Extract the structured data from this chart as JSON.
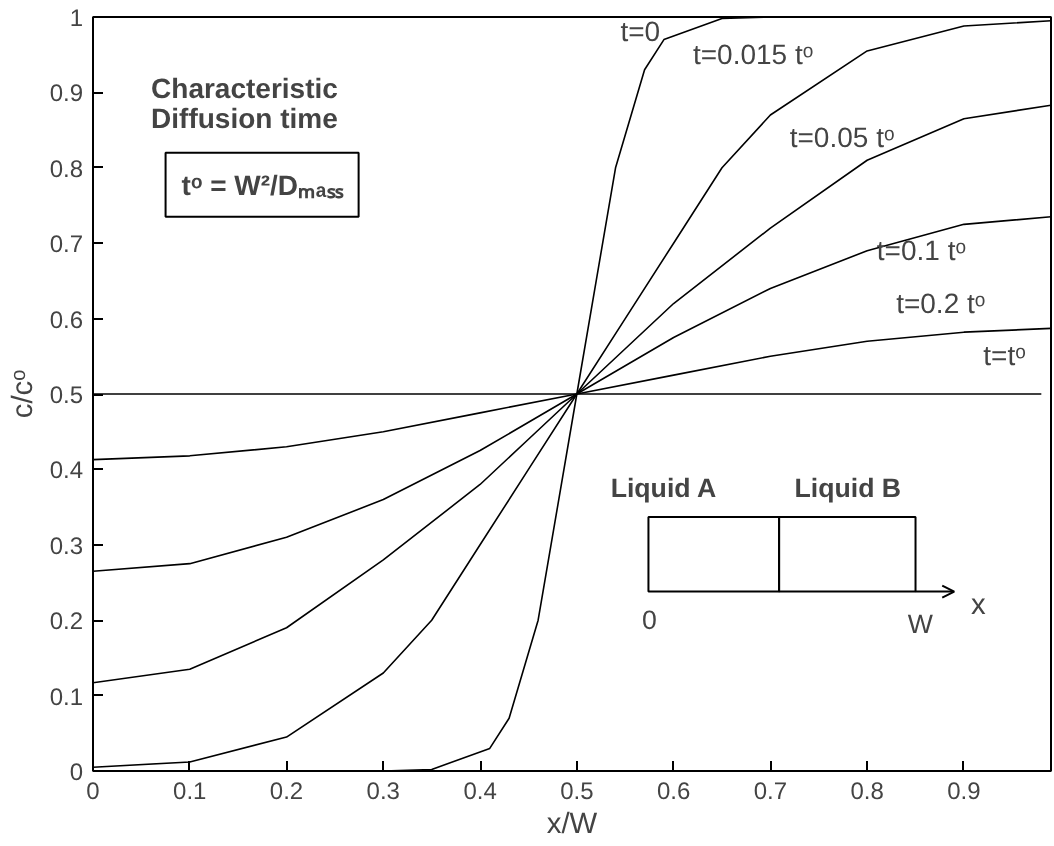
{
  "chart_data": {
    "type": "line",
    "xlabel": "x/W",
    "ylabel": "c/cᵒ",
    "xlim": [
      0,
      0.99
    ],
    "ylim": [
      0,
      1
    ],
    "xticks": [
      0,
      0.1,
      0.2,
      0.3,
      0.4,
      0.5,
      0.6,
      0.7,
      0.8,
      0.9
    ],
    "yticks": [
      0,
      0.1,
      0.2,
      0.3,
      0.4,
      0.5,
      0.6,
      0.7,
      0.8,
      0.9,
      1
    ],
    "grid": false,
    "marker": "none",
    "line_style": "solid",
    "series": [
      {
        "name": "t=0",
        "color": "#000000",
        "x": [
          0.3,
          0.35,
          0.41,
          0.43,
          0.46,
          0.48,
          0.5,
          0.52,
          0.54,
          0.57,
          0.59,
          0.65,
          0.7
        ],
        "values": [
          0,
          0.002,
          0.03,
          0.07,
          0.2,
          0.35,
          0.5,
          0.65,
          0.8,
          0.93,
          0.97,
          0.998,
          1
        ]
      },
      {
        "name": "t=0.015 tᵒ",
        "color": "#000000",
        "x": [
          0,
          0.1,
          0.2,
          0.3,
          0.35,
          0.4,
          0.45,
          0.5,
          0.55,
          0.6,
          0.65,
          0.7,
          0.8,
          0.9,
          0.99
        ],
        "values": [
          0.005,
          0.012,
          0.045,
          0.13,
          0.2,
          0.3,
          0.4,
          0.5,
          0.6,
          0.7,
          0.8,
          0.87,
          0.955,
          0.988,
          0.995
        ]
      },
      {
        "name": "t=0.05 tᵒ",
        "color": "#000000",
        "x": [
          0,
          0.1,
          0.2,
          0.3,
          0.4,
          0.45,
          0.5,
          0.55,
          0.6,
          0.7,
          0.8,
          0.9,
          0.99
        ],
        "values": [
          0.117,
          0.135,
          0.19,
          0.28,
          0.38,
          0.44,
          0.5,
          0.56,
          0.62,
          0.72,
          0.81,
          0.865,
          0.883
        ]
      },
      {
        "name": "t=0.1 tᵒ",
        "color": "#000000",
        "x": [
          0,
          0.1,
          0.2,
          0.3,
          0.4,
          0.5,
          0.6,
          0.7,
          0.8,
          0.9,
          0.99
        ],
        "values": [
          0.265,
          0.275,
          0.31,
          0.36,
          0.425,
          0.5,
          0.575,
          0.64,
          0.69,
          0.725,
          0.735
        ]
      },
      {
        "name": "t=0.2 tᵒ",
        "color": "#000000",
        "x": [
          0,
          0.1,
          0.2,
          0.3,
          0.4,
          0.5,
          0.6,
          0.7,
          0.8,
          0.9,
          0.99
        ],
        "values": [
          0.413,
          0.418,
          0.43,
          0.45,
          0.475,
          0.5,
          0.525,
          0.55,
          0.57,
          0.582,
          0.587
        ]
      },
      {
        "name": "t=tᵒ",
        "color": "#000000",
        "x": [
          0,
          0.98
        ],
        "values": [
          0.5,
          0.5
        ]
      }
    ],
    "annotations": [
      "Characteristic",
      "Diffusion time",
      "tᵒ = W²/Dₘₐₛₛ",
      "Liquid A",
      "Liquid B",
      "0",
      "W",
      "x"
    ]
  }
}
